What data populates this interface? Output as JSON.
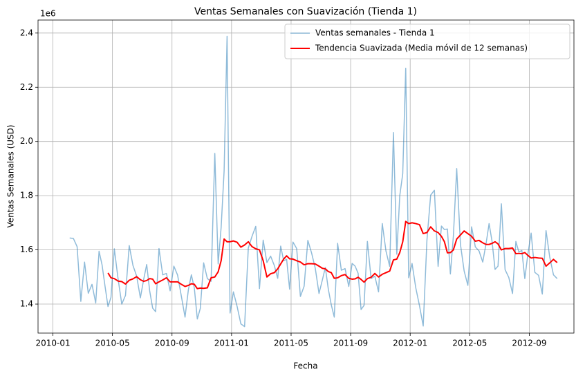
{
  "chart_data": {
    "type": "line",
    "title": "Ventas Semanales con Suavización (Tienda 1)",
    "xlabel": "Fecha",
    "ylabel": "Ventas Semanales (USD)",
    "y_offset_label": "1e6",
    "x": [
      "2010-02",
      "2010-02",
      "2010-02",
      "2010-02",
      "2010-03",
      "2010-03",
      "2010-03",
      "2010-03",
      "2010-04",
      "2010-04",
      "2010-04",
      "2010-04",
      "2010-04",
      "2010-05",
      "2010-05",
      "2010-05",
      "2010-05",
      "2010-06",
      "2010-06",
      "2010-06",
      "2010-06",
      "2010-07",
      "2010-07",
      "2010-07",
      "2010-07",
      "2010-07",
      "2010-08",
      "2010-08",
      "2010-08",
      "2010-08",
      "2010-09",
      "2010-09",
      "2010-09",
      "2010-09",
      "2010-10",
      "2010-10",
      "2010-10",
      "2010-10",
      "2010-10",
      "2010-11",
      "2010-11",
      "2010-11",
      "2010-11",
      "2010-12",
      "2010-12",
      "2010-12",
      "2010-12",
      "2010-12",
      "2011-01",
      "2011-01",
      "2011-01",
      "2011-01",
      "2011-02",
      "2011-02",
      "2011-02",
      "2011-02",
      "2011-03",
      "2011-03",
      "2011-03",
      "2011-03",
      "2011-04",
      "2011-04",
      "2011-04",
      "2011-04",
      "2011-04",
      "2011-05",
      "2011-05",
      "2011-05",
      "2011-05",
      "2011-06",
      "2011-06",
      "2011-06",
      "2011-06",
      "2011-07",
      "2011-07",
      "2011-07",
      "2011-07",
      "2011-07",
      "2011-08",
      "2011-08",
      "2011-08",
      "2011-08",
      "2011-09",
      "2011-09",
      "2011-09",
      "2011-09",
      "2011-09",
      "2011-10",
      "2011-10",
      "2011-10",
      "2011-10",
      "2011-11",
      "2011-11",
      "2011-11",
      "2011-11",
      "2011-12",
      "2011-12",
      "2011-12",
      "2011-12",
      "2011-12",
      "2012-01",
      "2012-01",
      "2012-01",
      "2012-01",
      "2012-02",
      "2012-02",
      "2012-02",
      "2012-02",
      "2012-03",
      "2012-03",
      "2012-03",
      "2012-03",
      "2012-03",
      "2012-04",
      "2012-04",
      "2012-04",
      "2012-04",
      "2012-05",
      "2012-05",
      "2012-05",
      "2012-05",
      "2012-06",
      "2012-06",
      "2012-06",
      "2012-06",
      "2012-06",
      "2012-07",
      "2012-07",
      "2012-07",
      "2012-07",
      "2012-08",
      "2012-08",
      "2012-08",
      "2012-08",
      "2012-08",
      "2012-09",
      "2012-09",
      "2012-09",
      "2012-09",
      "2012-10",
      "2012-10",
      "2012-10",
      "2012-10"
    ],
    "series": [
      {
        "name": "Ventas semanales - Tienda 1",
        "color": "#1f77b4",
        "opacity": 0.5,
        "width": 1.5,
        "values": [
          1.644,
          1.642,
          1.612,
          1.41,
          1.555,
          1.44,
          1.473,
          1.404,
          1.595,
          1.545,
          1.466,
          1.391,
          1.425,
          1.604,
          1.494,
          1.4,
          1.432,
          1.616,
          1.543,
          1.503,
          1.423,
          1.492,
          1.546,
          1.449,
          1.385,
          1.372,
          1.605,
          1.508,
          1.513,
          1.449,
          1.54,
          1.507,
          1.43,
          1.352,
          1.453,
          1.508,
          1.459,
          1.345,
          1.384,
          1.552,
          1.494,
          1.484,
          1.956,
          1.548,
          1.683,
          1.891,
          2.388,
          1.367,
          1.445,
          1.391,
          1.327,
          1.317,
          1.607,
          1.65,
          1.687,
          1.457,
          1.636,
          1.553,
          1.577,
          1.542,
          1.495,
          1.614,
          1.56,
          1.565,
          1.455,
          1.629,
          1.605,
          1.428,
          1.466,
          1.635,
          1.589,
          1.532,
          1.439,
          1.489,
          1.535,
          1.455,
          1.397,
          1.352,
          1.624,
          1.525,
          1.531,
          1.465,
          1.55,
          1.54,
          1.514,
          1.38,
          1.395,
          1.631,
          1.494,
          1.503,
          1.445,
          1.697,
          1.595,
          1.539,
          2.033,
          1.584,
          1.8,
          1.881,
          2.27,
          1.497,
          1.55,
          1.46,
          1.394,
          1.319,
          1.636,
          1.802,
          1.82,
          1.539,
          1.688,
          1.675,
          1.677,
          1.511,
          1.65,
          1.9,
          1.621,
          1.522,
          1.469,
          1.685,
          1.611,
          1.596,
          1.555,
          1.624,
          1.697,
          1.631,
          1.528,
          1.54,
          1.77,
          1.527,
          1.498,
          1.439,
          1.631,
          1.592,
          1.598,
          1.494,
          1.582,
          1.662,
          1.517,
          1.506,
          1.437,
          1.671,
          1.573,
          1.508,
          1.494
        ]
      },
      {
        "name": "Tendencia Suavizada (Media móvil de 12 semanas)",
        "color": "#ff0000",
        "opacity": 1,
        "width": 2,
        "values": [
          null,
          null,
          null,
          null,
          null,
          null,
          null,
          null,
          null,
          null,
          null,
          1.515,
          1.497,
          1.494,
          1.485,
          1.483,
          1.474,
          1.488,
          1.493,
          1.501,
          1.49,
          1.484,
          1.487,
          1.494,
          1.492,
          1.475,
          1.482,
          1.489,
          1.497,
          1.482,
          1.482,
          1.482,
          1.473,
          1.465,
          1.469,
          1.475,
          1.473,
          1.457,
          1.459,
          1.458,
          1.46,
          1.497,
          1.5,
          1.519,
          1.56,
          1.64,
          1.63,
          1.63,
          1.633,
          1.628,
          1.61,
          1.618,
          1.63,
          1.612,
          1.604,
          1.6,
          1.56,
          1.5,
          1.512,
          1.516,
          1.53,
          1.548,
          1.566,
          1.578,
          1.567,
          1.566,
          1.56,
          1.555,
          1.545,
          1.549,
          1.549,
          1.548,
          1.54,
          1.532,
          1.53,
          1.52,
          1.516,
          1.495,
          1.497,
          1.505,
          1.509,
          1.495,
          1.492,
          1.493,
          1.499,
          1.491,
          1.481,
          1.494,
          1.499,
          1.513,
          1.5,
          1.51,
          1.516,
          1.522,
          1.563,
          1.566,
          1.59,
          1.63,
          1.705,
          1.697,
          1.7,
          1.697,
          1.693,
          1.66,
          1.664,
          1.685,
          1.67,
          1.664,
          1.65,
          1.63,
          1.589,
          1.59,
          1.6,
          1.64,
          1.655,
          1.67,
          1.66,
          1.65,
          1.632,
          1.635,
          1.626,
          1.62,
          1.62,
          1.624,
          1.63,
          1.622,
          1.6,
          1.605,
          1.605,
          1.607,
          1.586,
          1.587,
          1.586,
          1.59,
          1.58,
          1.57,
          1.572,
          1.57,
          1.569,
          1.54,
          1.552,
          1.565,
          1.553
        ]
      }
    ],
    "xlim": [
      "2009-12",
      "2012-12"
    ],
    "xticks": [
      "2010-01",
      "2010-05",
      "2010-09",
      "2011-01",
      "2011-05",
      "2011-09",
      "2012-01",
      "2012-05",
      "2012-09"
    ],
    "ylim": [
      1.293,
      2.448
    ],
    "yticks": [
      1.4,
      1.6,
      1.8,
      2.0,
      2.2,
      2.4
    ],
    "ytick_labels": [
      "1.4",
      "1.6",
      "1.8",
      "2.0",
      "2.2",
      "2.4"
    ],
    "grid": true,
    "legend": "upper right"
  }
}
